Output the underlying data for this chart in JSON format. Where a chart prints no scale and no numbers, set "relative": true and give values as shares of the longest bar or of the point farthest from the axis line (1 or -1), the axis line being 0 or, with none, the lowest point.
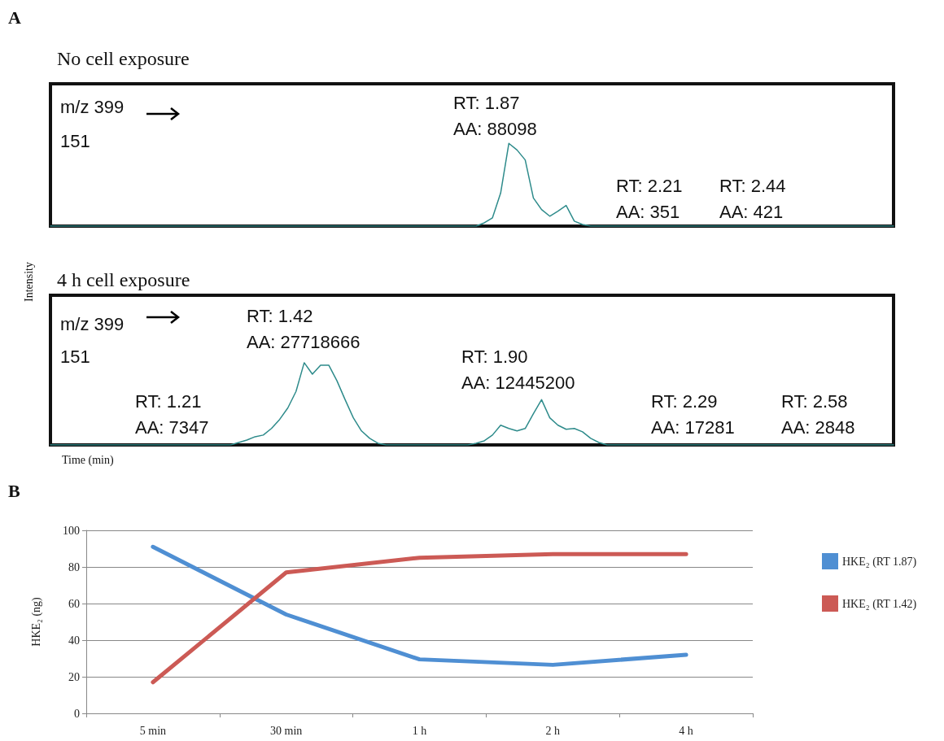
{
  "chart_data": [
    {
      "type": "line",
      "relative": true,
      "title": "No cell exposure",
      "annotations": [
        "A",
        "m/z 399",
        "151",
        "RT: 1.87\nAA: 88098",
        "RT: 2.21\nAA: 351",
        "RT: 2.44\nAA: 421"
      ],
      "categories": [
        null,
        null,
        null,
        null,
        null,
        null,
        null,
        null,
        null,
        null,
        null,
        null,
        null,
        null,
        null,
        null,
        null,
        null,
        null,
        null,
        null,
        null,
        null,
        null,
        null,
        null,
        null,
        null,
        null,
        null,
        null,
        null,
        null,
        null,
        null,
        null,
        null,
        null,
        null,
        null,
        null,
        null,
        null,
        null,
        null,
        null,
        null,
        null,
        null,
        null,
        null,
        null,
        null,
        null,
        null,
        null,
        null,
        null,
        null,
        null,
        null,
        null,
        null,
        null,
        null,
        null,
        null,
        null,
        null,
        null,
        null,
        null,
        null,
        null,
        null,
        null,
        null,
        null,
        null,
        null,
        null,
        null,
        null,
        null,
        null,
        null,
        null,
        null,
        null,
        null,
        null,
        null,
        null,
        null,
        null,
        null,
        null,
        null,
        null,
        null,
        null,
        null,
        null,
        null
      ],
      "series": [
        {
          "color": "#2e8b8b",
          "values": [
            0,
            0,
            0,
            0,
            0,
            0,
            0,
            0,
            0,
            0,
            0,
            0,
            0,
            0,
            0,
            0,
            0,
            0,
            0,
            0,
            0,
            0,
            0,
            0,
            0,
            0,
            0,
            0,
            0,
            0,
            0,
            0,
            0,
            0,
            0,
            0,
            0,
            0,
            0,
            0,
            0,
            0,
            0,
            0,
            0,
            0,
            0,
            0,
            0,
            0,
            0,
            0,
            0,
            0.04,
            0.1,
            0.4,
            1,
            0.92,
            0.8,
            0.34,
            0.2,
            0.12,
            0.18,
            0.25,
            0.06,
            0.02,
            0,
            0,
            0,
            0,
            0,
            0,
            0,
            0,
            0,
            0,
            0,
            0,
            0,
            0,
            0,
            0,
            0,
            0,
            0,
            0,
            0,
            0,
            0,
            0,
            0,
            0,
            0,
            0,
            0,
            0,
            0,
            0,
            0,
            0,
            0,
            0,
            0,
            0
          ]
        }
      ]
    },
    {
      "type": "line",
      "relative": true,
      "title": "4 h cell exposure",
      "xlabel": "Time (min)",
      "ylabel": "Intensity",
      "annotations": [
        "m/z 399",
        "151",
        "RT: 1.42\nAA: 27718666",
        "RT: 1.90\nAA: 12445200",
        "RT: 1.21\nAA: 7347",
        "RT: 2.29\nAA: 17281",
        "RT: 2.58\nAA: 2848"
      ],
      "categories": [
        null,
        null,
        null,
        null,
        null,
        null,
        null,
        null,
        null,
        null,
        null,
        null,
        null,
        null,
        null,
        null,
        null,
        null,
        null,
        null,
        null,
        null,
        null,
        null,
        null,
        null,
        null,
        null,
        null,
        null,
        null,
        null,
        null,
        null,
        null,
        null,
        null,
        null,
        null,
        null,
        null,
        null,
        null,
        null,
        null,
        null,
        null,
        null,
        null,
        null,
        null,
        null,
        null,
        null,
        null,
        null,
        null,
        null,
        null,
        null,
        null,
        null,
        null,
        null,
        null,
        null,
        null,
        null,
        null,
        null,
        null,
        null,
        null,
        null,
        null,
        null,
        null,
        null,
        null,
        null,
        null,
        null,
        null,
        null,
        null,
        null,
        null,
        null,
        null,
        null,
        null,
        null,
        null,
        null,
        null,
        null,
        null,
        null,
        null,
        null,
        null,
        null,
        null,
        null
      ],
      "series": [
        {
          "color": "#2e8b8b",
          "values": [
            0,
            0,
            0,
            0,
            0,
            0,
            0,
            0,
            0,
            0,
            0,
            0,
            0,
            0,
            0,
            0,
            0,
            0,
            0,
            0,
            0,
            0,
            0,
            0.03,
            0.06,
            0.1,
            0.12,
            0.2,
            0.31,
            0.45,
            0.65,
            1,
            0.86,
            0.97,
            0.97,
            0.78,
            0.55,
            0.33,
            0.17,
            0.08,
            0.02,
            0,
            0,
            0,
            0,
            0,
            0,
            0,
            0,
            0,
            0,
            0,
            0.02,
            0.05,
            0.12,
            0.24,
            0.2,
            0.17,
            0.2,
            0.38,
            0.55,
            0.33,
            0.24,
            0.19,
            0.2,
            0.16,
            0.08,
            0.03,
            0,
            0,
            0,
            0,
            0,
            0,
            0,
            0,
            0,
            0,
            0,
            0,
            0,
            0,
            0,
            0,
            0,
            0,
            0,
            0,
            0,
            0,
            0,
            0,
            0,
            0,
            0,
            0,
            0,
            0,
            0,
            0,
            0,
            0,
            0,
            0
          ]
        }
      ]
    },
    {
      "type": "line",
      "ylabel": "HKE₂ (ng)",
      "annotations": [
        "B"
      ],
      "categories": [
        "5 min",
        "30 min",
        "1 h",
        "2 h",
        "4 h"
      ],
      "ylim": [
        0,
        100
      ],
      "yticks": [
        0,
        20,
        40,
        60,
        80,
        100
      ],
      "grid": "y",
      "legend": "right",
      "marker": "none",
      "series": [
        {
          "name": "HKE₂ (RT 1.87)",
          "color": "#4f8fd3",
          "values": [
            91,
            54,
            29.5,
            26.5,
            32
          ]
        },
        {
          "name": "HKE₂ (RT 1.42)",
          "color": "#cc5a55",
          "values": [
            17,
            77,
            85,
            87,
            87
          ]
        }
      ]
    }
  ]
}
